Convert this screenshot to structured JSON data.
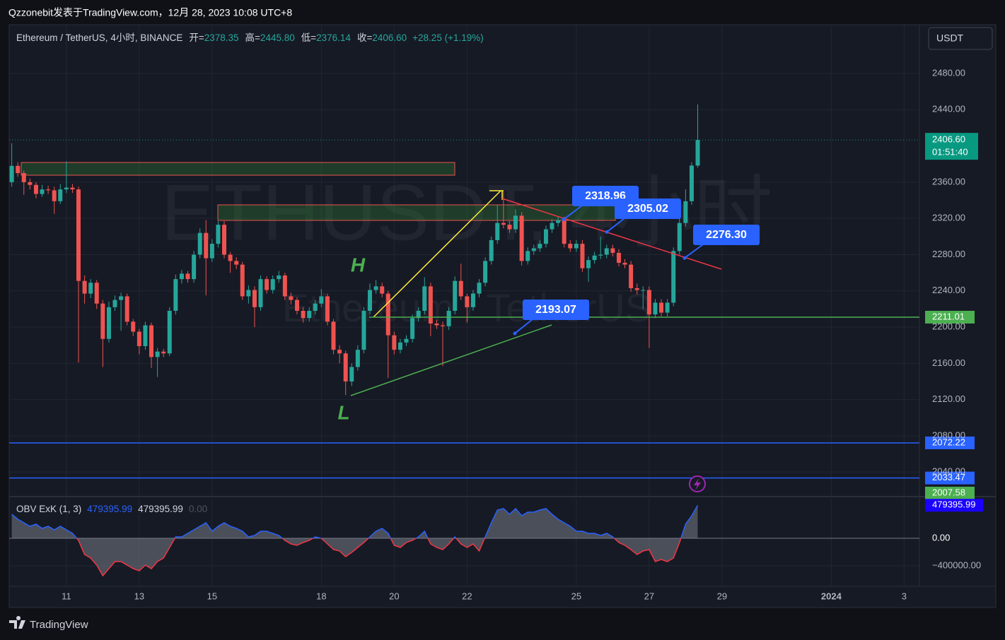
{
  "header": "Qzzonebit发表于TradingView.com，12月 28, 2023 10:08 UTC+8",
  "currency": "USDT",
  "brand": "TradingView",
  "legend": {
    "symbol": "Ethereum / TetherUS, 4小时, BINANCE",
    "items": [
      {
        "label": "开=",
        "value": "2378.35"
      },
      {
        "label": "高=",
        "value": "2445.80"
      },
      {
        "label": "低=",
        "value": "2376.14"
      },
      {
        "label": "收=",
        "value": "2406.60"
      }
    ],
    "change": "+28.25 (+1.19%)"
  },
  "chart_data": {
    "type": "candlestick",
    "title": "ETHUSDT, 4小时",
    "subtitle": "Ethereum / TetherUS",
    "colors": {
      "up": "#26a69a",
      "down": "#ef5350"
    },
    "grid": true,
    "x": [
      9.5,
      9.667,
      9.833,
      10,
      10.167,
      10.333,
      10.5,
      10.667,
      10.833,
      11,
      11.167,
      11.333,
      11.5,
      11.667,
      11.833,
      12,
      12.167,
      12.333,
      12.5,
      12.667,
      12.833,
      13,
      13.167,
      13.333,
      13.5,
      13.667,
      13.833,
      14,
      14.167,
      14.333,
      14.5,
      14.667,
      14.833,
      15,
      15.167,
      15.333,
      15.5,
      15.667,
      15.833,
      16,
      16.167,
      16.333,
      16.5,
      16.667,
      16.833,
      17,
      17.167,
      17.333,
      17.5,
      17.667,
      17.833,
      18,
      18.167,
      18.333,
      18.5,
      18.667,
      18.833,
      19,
      19.167,
      19.333,
      19.5,
      19.667,
      19.833,
      20,
      20.167,
      20.333,
      20.5,
      20.667,
      20.833,
      21,
      21.167,
      21.333,
      21.5,
      21.667,
      21.833,
      22,
      22.167,
      22.333,
      22.5,
      22.667,
      22.833,
      23,
      23.167,
      23.333,
      23.5,
      23.667,
      23.833,
      24,
      24.167,
      24.333,
      24.5,
      24.667,
      24.833,
      25,
      25.167,
      25.333,
      25.5,
      25.667,
      25.833,
      26,
      26.167,
      26.333,
      26.5,
      26.667,
      26.833,
      27,
      27.167,
      27.333,
      27.5,
      27.667,
      27.833,
      28,
      28.167,
      28.333
    ],
    "open": [
      2360,
      2378,
      2370,
      2360,
      2357,
      2347,
      2352,
      2351,
      2339,
      2352,
      2354,
      2352,
      2251,
      2237,
      2249,
      2226,
      2187,
      2222,
      2230,
      2234,
      2206,
      2195,
      2179,
      2202,
      2167,
      2173,
      2171,
      2218,
      2253,
      2259,
      2253,
      2280,
      2304,
      2276,
      2292,
      2313,
      2280,
      2273,
      2269,
      2234,
      2241,
      2222,
      2253,
      2241,
      2253,
      2257,
      2234,
      2230,
      2218,
      2210,
      2218,
      2226,
      2234,
      2206,
      2175,
      2171,
      2140,
      2156,
      2175,
      2218,
      2241,
      2245,
      2237,
      2191,
      2175,
      2183,
      2187,
      2210,
      2218,
      2245,
      2204,
      2202,
      2201,
      2218,
      2251,
      2234,
      2222,
      2237,
      2249,
      2273,
      2296,
      2315,
      2313,
      2308,
      2323,
      2273,
      2284,
      2287,
      2292,
      2308,
      2315,
      2318,
      2292,
      2287,
      2292,
      2265,
      2274,
      2279,
      2280,
      2287,
      2282,
      2271,
      2269,
      2243,
      2241,
      2241,
      2214,
      2227,
      2216,
      2227,
      2284,
      2315,
      2339,
      2378.35
    ],
    "high": [
      2403,
      2382,
      2373,
      2364,
      2360,
      2357,
      2356,
      2355,
      2358,
      2383,
      2358,
      2355,
      2257,
      2253,
      2252,
      2230,
      2228,
      2235,
      2238,
      2237,
      2209,
      2198,
      2206,
      2205,
      2177,
      2176,
      2222,
      2258,
      2263,
      2262,
      2284,
      2309,
      2318,
      2297,
      2317,
      2317,
      2283,
      2277,
      2272,
      2246,
      2245,
      2257,
      2256,
      2257,
      2262,
      2260,
      2238,
      2233,
      2222,
      2222,
      2230,
      2242,
      2237,
      2209,
      2180,
      2174,
      2160,
      2180,
      2222,
      2248,
      2252,
      2249,
      2240,
      2195,
      2187,
      2191,
      2214,
      2222,
      2255,
      2249,
      2208,
      2206,
      2222,
      2256,
      2270,
      2237,
      2241,
      2253,
      2277,
      2300,
      2335,
      2350,
      2317,
      2330,
      2327,
      2288,
      2291,
      2296,
      2312,
      2319,
      2322,
      2322,
      2296,
      2296,
      2296,
      2278,
      2283,
      2300,
      2291,
      2291,
      2286,
      2275,
      2273,
      2248,
      2245,
      2245,
      2231,
      2231,
      2231,
      2288,
      2335,
      2352,
      2382,
      2445.8
    ],
    "low": [
      2355,
      2366,
      2346,
      2352,
      2342,
      2344,
      2347,
      2325,
      2336,
      2348,
      2348,
      2161,
      2226,
      2232,
      2220,
      2156,
      2183,
      2218,
      2196,
      2202,
      2190,
      2170,
      2175,
      2155,
      2145,
      2167,
      2168,
      2214,
      2248,
      2249,
      2249,
      2276,
      2235,
      2272,
      2288,
      2276,
      2260,
      2264,
      2230,
      2226,
      2200,
      2218,
      2237,
      2237,
      2249,
      2230,
      2225,
      2214,
      2205,
      2206,
      2214,
      2222,
      2202,
      2170,
      2160,
      2125,
      2135,
      2152,
      2171,
      2214,
      2237,
      2233,
      2144,
      2170,
      2171,
      2179,
      2183,
      2206,
      2214,
      2190,
      2198,
      2157,
      2197,
      2214,
      2230,
      2205,
      2218,
      2233,
      2245,
      2269,
      2292,
      2309,
      2304,
      2304,
      2268,
      2269,
      2280,
      2283,
      2288,
      2304,
      2311,
      2288,
      2283,
      2283,
      2261,
      2250,
      2270,
      2275,
      2276,
      2278,
      2267,
      2265,
      2239,
      2236,
      2220,
      2177,
      2210,
      2212,
      2212,
      2223,
      2280,
      2311,
      2335,
      2376.14
    ],
    "close": [
      2378,
      2370,
      2360,
      2357,
      2347,
      2352,
      2351,
      2339,
      2352,
      2354,
      2352,
      2251,
      2237,
      2249,
      2226,
      2187,
      2222,
      2230,
      2234,
      2206,
      2195,
      2179,
      2202,
      2167,
      2173,
      2171,
      2218,
      2253,
      2259,
      2253,
      2280,
      2304,
      2276,
      2292,
      2313,
      2280,
      2273,
      2269,
      2234,
      2241,
      2222,
      2253,
      2241,
      2253,
      2257,
      2234,
      2230,
      2218,
      2210,
      2218,
      2226,
      2234,
      2206,
      2175,
      2171,
      2140,
      2156,
      2175,
      2218,
      2241,
      2245,
      2237,
      2191,
      2175,
      2183,
      2187,
      2210,
      2218,
      2245,
      2204,
      2202,
      2201,
      2218,
      2251,
      2234,
      2222,
      2237,
      2249,
      2273,
      2296,
      2315,
      2313,
      2308,
      2323,
      2273,
      2284,
      2287,
      2292,
      2308,
      2315,
      2318,
      2292,
      2287,
      2292,
      2265,
      2274,
      2279,
      2280,
      2287,
      2282,
      2271,
      2269,
      2243,
      2241,
      2241,
      2214,
      2227,
      2216,
      2227,
      2284,
      2315,
      2339,
      2378.35,
      2406.6
    ],
    "xlim": [
      9.43,
      34.42
    ],
    "xticks": [
      11,
      13,
      15,
      18,
      20,
      22,
      25,
      27,
      29,
      {
        "value": 32,
        "label": "2024"
      },
      {
        "value": 34,
        "label": "3"
      }
    ],
    "ylim": [
      2013.7,
      2533.8
    ],
    "yticks": [
      {
        "value": 2480,
        "label": "2480.00"
      },
      {
        "value": 2440,
        "label": "2440.00"
      },
      {
        "value": 2360,
        "label": "2360.00"
      },
      {
        "value": 2320,
        "label": "2320.00"
      },
      {
        "value": 2280,
        "label": "2280.00"
      },
      {
        "value": 2240,
        "label": "2240.00"
      },
      {
        "value": 2200,
        "label": "2200.00"
      },
      {
        "value": 2160,
        "label": "2160.00"
      },
      {
        "value": 2120,
        "label": "2120.00"
      },
      {
        "value": 2080,
        "label": "2080.00"
      },
      {
        "value": 2040,
        "label": "2040.00"
      }
    ],
    "last_price": {
      "value": 2406.6,
      "label": "2406.60",
      "countdown": "01:51:40",
      "color": "#089981"
    },
    "levels": [
      {
        "value": 2211.01,
        "label": "2211.01",
        "color": "#4caf50"
      },
      {
        "value": 2072.22,
        "label": "2072.22",
        "color": "#2962ff"
      },
      {
        "value": 2033.47,
        "label": "2033.47",
        "color": "#2962ff"
      },
      {
        "value": 2007.58,
        "label": "2007.58",
        "color": "#4caf50"
      }
    ],
    "callouts": [
      {
        "value": 2318.96,
        "label": "2318.96"
      },
      {
        "value": 2305.02,
        "label": "2305.02"
      },
      {
        "value": 2276.3,
        "label": "2276.30"
      },
      {
        "value": 2193.07,
        "label": "2193.07"
      }
    ],
    "annotations": [
      "H",
      "L"
    ],
    "obv": {
      "name": "OBV ExK (1, 3)",
      "legend_values": [
        "479395.99",
        "479395.99",
        "0.00"
      ],
      "last_label": "479395.99",
      "ylim": [
        -697400,
        584600
      ],
      "yticks": [
        {
          "value": 0,
          "label": "0.00"
        },
        {
          "value": -400000,
          "label": "−400000.00"
        }
      ],
      "values": [
        348700,
        276900,
        225600,
        174400,
        205100,
        143600,
        174400,
        123100,
        174400,
        123100,
        71800,
        -30800,
        -235900,
        -287200,
        -389700,
        -543600,
        -441000,
        -338400,
        -338400,
        -389700,
        -441000,
        -471800,
        -389700,
        -441000,
        -338400,
        -287200,
        -133300,
        20500,
        20500,
        71800,
        123100,
        174400,
        225600,
        102600,
        174400,
        225600,
        174400,
        143600,
        102600,
        20500,
        41000,
        102600,
        102600,
        71800,
        41000,
        -30800,
        -82000,
        -102600,
        -61500,
        -30800,
        20500,
        0,
        -82000,
        -164100,
        -184600,
        -266700,
        -205100,
        -133300,
        -61500,
        20500,
        102600,
        143600,
        71800,
        -102600,
        -133300,
        -61500,
        -30800,
        20500,
        102600,
        -82000,
        -133300,
        -164100,
        -82000,
        20500,
        -82000,
        -133300,
        -82000,
        -184600,
        20500,
        225600,
        410200,
        430800,
        348700,
        430800,
        328200,
        379500,
        379500,
        410200,
        430800,
        348700,
        276900,
        225600,
        174400,
        102600,
        102600,
        71800,
        71800,
        41000,
        71800,
        20500,
        -61500,
        -102600,
        -164100,
        -235900,
        -184600,
        -164100,
        -338400,
        -307700,
        -338400,
        -287200,
        -61500,
        205100,
        328200,
        479395.99
      ]
    }
  }
}
